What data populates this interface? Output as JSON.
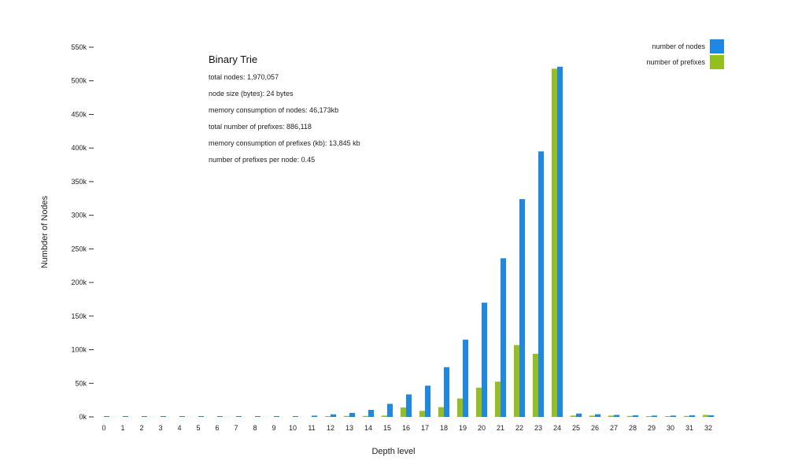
{
  "chart_data": {
    "type": "bar",
    "title": "Binary Trie",
    "xlabel": "Depth level",
    "ylabel": "Numbder of Nodes",
    "categories": [
      "0",
      "1",
      "2",
      "3",
      "4",
      "5",
      "6",
      "7",
      "8",
      "9",
      "10",
      "11",
      "12",
      "13",
      "14",
      "15",
      "16",
      "17",
      "18",
      "19",
      "20",
      "21",
      "22",
      "23",
      "24",
      "25",
      "26",
      "27",
      "28",
      "29",
      "30",
      "31",
      "32"
    ],
    "series": [
      {
        "name": "number of nodes",
        "color": "#1e88e5",
        "values": [
          1,
          2,
          4,
          8,
          16,
          32,
          64,
          128,
          256,
          512,
          1000,
          1900,
          3800,
          6000,
          10500,
          19500,
          33500,
          46500,
          74000,
          115000,
          170000,
          236000,
          324000,
          395000,
          521000,
          5000,
          4000,
          3000,
          2500,
          2000,
          2000,
          2500,
          2500
        ]
      },
      {
        "name": "number of prefixes",
        "color": "#93c01f",
        "values": [
          0,
          0,
          0,
          0,
          0,
          0,
          0,
          0,
          0,
          0,
          0,
          0,
          1000,
          1500,
          1500,
          2000,
          14000,
          9000,
          14500,
          27500,
          43500,
          52500,
          107000,
          94000,
          518000,
          2000,
          2000,
          2000,
          1500,
          1000,
          1000,
          1500,
          3000
        ]
      }
    ],
    "ylim": [
      0,
      550000
    ],
    "yticks": [
      0,
      50000,
      100000,
      150000,
      200000,
      250000,
      300000,
      350000,
      400000,
      450000,
      500000,
      550000
    ],
    "ytick_labels": [
      "0k",
      "50k",
      "100k",
      "150k",
      "200k",
      "250k",
      "300k",
      "350k",
      "400k",
      "450k",
      "500k",
      "550k"
    ],
    "grid": false,
    "legend_position": "top-right",
    "stats_lines": [
      "total nodes: 1,970,057",
      "node size (bytes): 24 bytes",
      "memory consumption of nodes: 46,173kb",
      "total number of prefixes: 886,118",
      "memory consumption of prefixes (kb): 13,845 kb",
      "number of prefixes per node: 0.45"
    ]
  }
}
